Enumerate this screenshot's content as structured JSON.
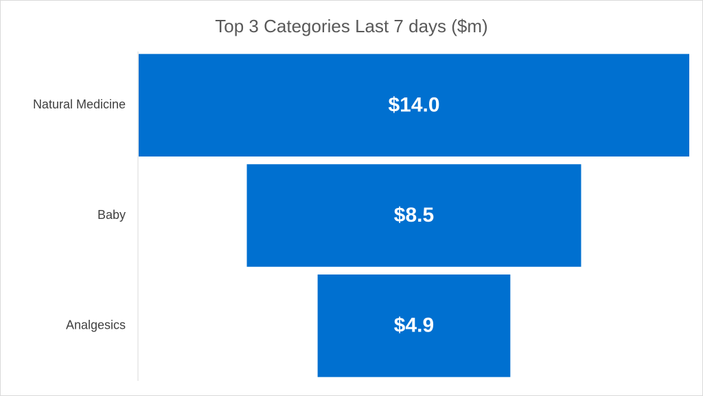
{
  "chart_data": {
    "type": "funnel",
    "title": "Top 3 Categories Last 7 days ($m)",
    "categories": [
      "Natural Medicine",
      "Baby",
      "Analgesics"
    ],
    "values": [
      14.0,
      8.5,
      4.9
    ],
    "value_labels": [
      "$14.0",
      "$8.5",
      "$4.9"
    ],
    "color": "#0070d0"
  }
}
